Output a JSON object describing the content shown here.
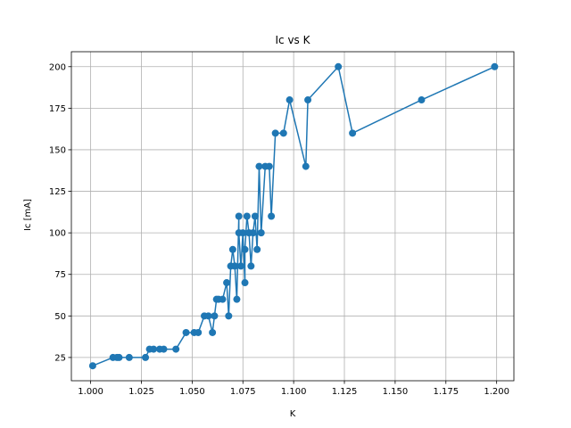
{
  "chart_data": {
    "type": "line",
    "title": "Ic vs K",
    "xlabel": "K",
    "ylabel": "Ic [mA]",
    "xlim": [
      0.9905,
      1.2085
    ],
    "ylim": [
      11,
      209
    ],
    "xticks": [
      1.0,
      1.025,
      1.05,
      1.075,
      1.1,
      1.125,
      1.15,
      1.175,
      1.2
    ],
    "xtick_labels": [
      "1.000",
      "1.025",
      "1.050",
      "1.075",
      "1.100",
      "1.125",
      "1.150",
      "1.175",
      "1.200"
    ],
    "yticks": [
      25,
      50,
      75,
      100,
      125,
      150,
      175,
      200
    ],
    "ytick_labels": [
      "25",
      "50",
      "75",
      "100",
      "125",
      "150",
      "175",
      "200"
    ],
    "grid": true,
    "color": "#1f77b4",
    "series": [
      {
        "x": [
          1.001,
          1.011,
          1.013,
          1.014,
          1.019,
          1.027,
          1.029,
          1.031,
          1.034,
          1.036,
          1.042,
          1.047,
          1.051,
          1.053,
          1.056,
          1.058,
          1.06,
          1.061,
          1.062,
          1.063,
          1.065,
          1.067,
          1.068,
          1.069,
          1.07,
          1.071,
          1.072,
          1.073,
          1.073,
          1.074,
          1.075,
          1.076,
          1.076,
          1.077,
          1.078,
          1.079,
          1.08,
          1.081,
          1.082,
          1.083,
          1.084,
          1.086,
          1.088,
          1.089,
          1.091,
          1.095,
          1.098,
          1.106,
          1.107,
          1.122,
          1.129,
          1.163,
          1.199
        ],
        "y": [
          20,
          25,
          25,
          25,
          25,
          25,
          30,
          30,
          30,
          30,
          30,
          40,
          40,
          40,
          50,
          50,
          40,
          50,
          60,
          60,
          60,
          70,
          50,
          80,
          90,
          80,
          60,
          110,
          100,
          80,
          100,
          70,
          90,
          110,
          100,
          80,
          100,
          110,
          90,
          140,
          100,
          140,
          140,
          110,
          160,
          160,
          180,
          140,
          180,
          200,
          160,
          180,
          200
        ]
      }
    ]
  }
}
